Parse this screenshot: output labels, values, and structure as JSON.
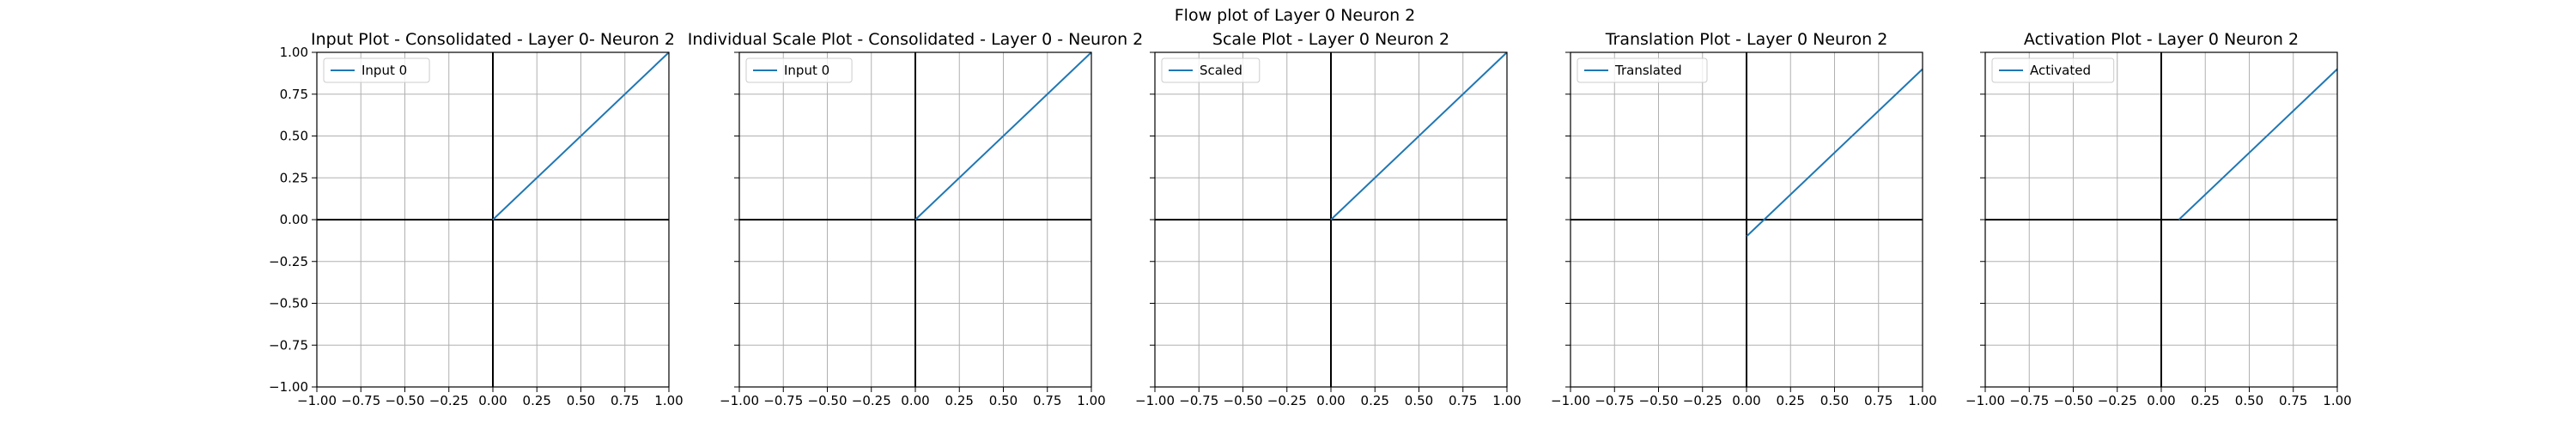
{
  "figure": {
    "title": "Flow plot of Layer 0 Neuron 2",
    "line_color": "#1f77b4"
  },
  "chart_data": [
    {
      "type": "line",
      "title": "Input Plot - Consolidated - Layer 0- Neuron 2",
      "xlabel": "",
      "ylabel": "",
      "xlim": [
        -1.0,
        1.0
      ],
      "ylim": [
        -1.0,
        1.0
      ],
      "grid": true,
      "show_ytick_labels": true,
      "legend_position": "upper-left",
      "xticks": [
        "−1.00",
        "−0.75",
        "−0.50",
        "−0.25",
        "0.00",
        "0.25",
        "0.50",
        "0.75",
        "1.00"
      ],
      "yticks": [
        "−1.00",
        "−0.75",
        "−0.50",
        "−0.25",
        "0.00",
        "0.25",
        "0.50",
        "0.75",
        "1.00"
      ],
      "series": [
        {
          "name": "Input 0",
          "x": [
            0.0,
            1.0
          ],
          "y": [
            0.0,
            1.0
          ]
        }
      ]
    },
    {
      "type": "line",
      "title": "Individual Scale Plot - Consolidated - Layer 0 - Neuron 2",
      "xlabel": "",
      "ylabel": "",
      "xlim": [
        -1.0,
        1.0
      ],
      "ylim": [
        -1.0,
        1.0
      ],
      "grid": true,
      "show_ytick_labels": false,
      "legend_position": "upper-left",
      "xticks": [
        "−1.00",
        "−0.75",
        "−0.50",
        "−0.25",
        "0.00",
        "0.25",
        "0.50",
        "0.75",
        "1.00"
      ],
      "yticks": [],
      "series": [
        {
          "name": "Input 0",
          "x": [
            0.0,
            1.0
          ],
          "y": [
            0.0,
            1.0
          ]
        }
      ]
    },
    {
      "type": "line",
      "title": "Scale Plot - Layer 0 Neuron 2",
      "xlabel": "",
      "ylabel": "",
      "xlim": [
        -1.0,
        1.0
      ],
      "ylim": [
        -1.0,
        1.0
      ],
      "grid": true,
      "show_ytick_labels": false,
      "legend_position": "upper-left",
      "xticks": [
        "−1.00",
        "−0.75",
        "−0.50",
        "−0.25",
        "0.00",
        "0.25",
        "0.50",
        "0.75",
        "1.00"
      ],
      "yticks": [],
      "series": [
        {
          "name": "Scaled",
          "x": [
            0.0,
            1.0
          ],
          "y": [
            0.0,
            1.0
          ]
        }
      ]
    },
    {
      "type": "line",
      "title": "Translation Plot - Layer 0 Neuron 2",
      "xlabel": "",
      "ylabel": "",
      "xlim": [
        -1.0,
        1.0
      ],
      "ylim": [
        -1.0,
        1.0
      ],
      "grid": true,
      "show_ytick_labels": false,
      "legend_position": "upper-left",
      "xticks": [
        "−1.00",
        "−0.75",
        "−0.50",
        "−0.25",
        "0.00",
        "0.25",
        "0.50",
        "0.75",
        "1.00"
      ],
      "yticks": [],
      "series": [
        {
          "name": "Translated",
          "x": [
            0.0,
            1.0
          ],
          "y": [
            -0.1,
            0.9
          ]
        }
      ]
    },
    {
      "type": "line",
      "title": "Activation Plot - Layer 0 Neuron 2",
      "xlabel": "",
      "ylabel": "",
      "xlim": [
        -1.0,
        1.0
      ],
      "ylim": [
        -1.0,
        1.0
      ],
      "grid": true,
      "show_ytick_labels": false,
      "legend_position": "upper-left",
      "xticks": [
        "−1.00",
        "−0.75",
        "−0.50",
        "−0.25",
        "0.00",
        "0.25",
        "0.50",
        "0.75",
        "1.00"
      ],
      "yticks": [],
      "series": [
        {
          "name": "Activated",
          "x": [
            0.1,
            1.0
          ],
          "y": [
            0.0,
            0.9
          ]
        }
      ]
    }
  ]
}
